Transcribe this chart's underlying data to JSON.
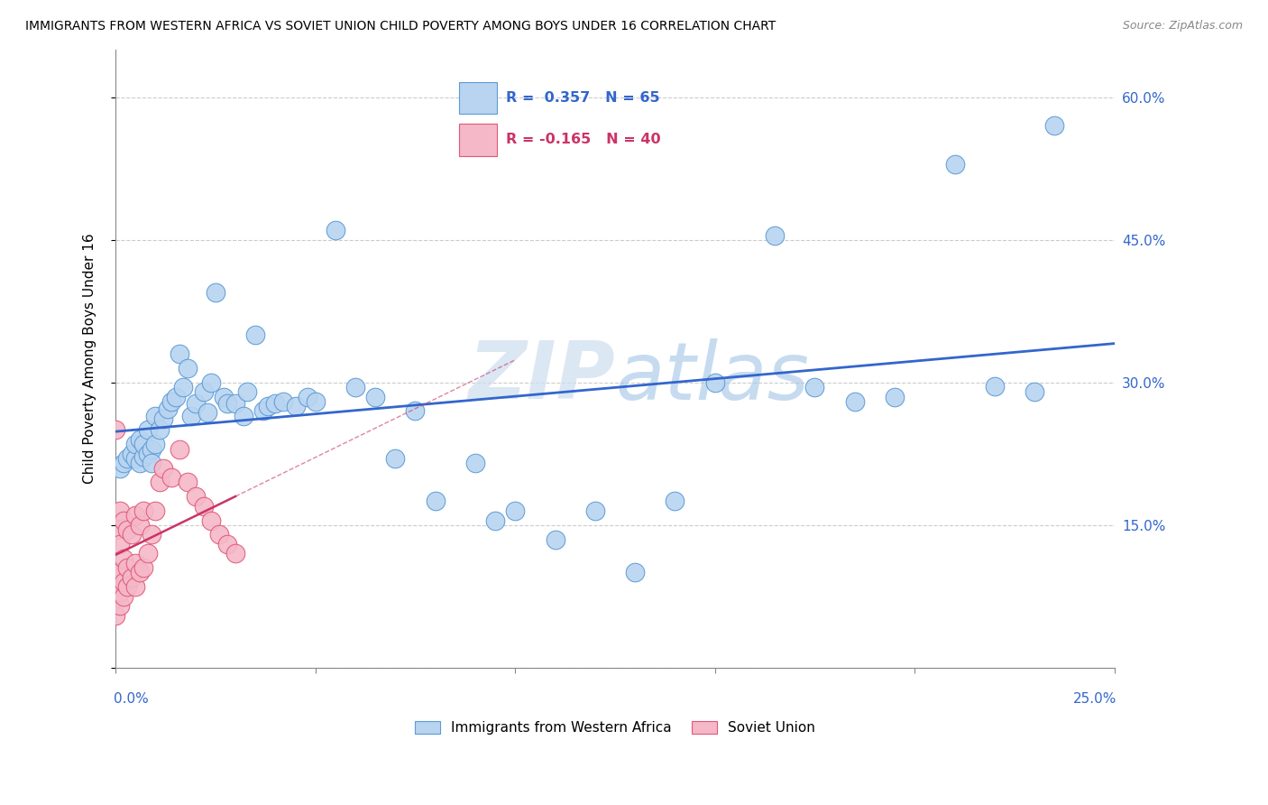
{
  "title": "IMMIGRANTS FROM WESTERN AFRICA VS SOVIET UNION CHILD POVERTY AMONG BOYS UNDER 16 CORRELATION CHART",
  "source": "Source: ZipAtlas.com",
  "ylabel": "Child Poverty Among Boys Under 16",
  "xlim": [
    0.0,
    0.25
  ],
  "ylim": [
    0.0,
    0.65
  ],
  "ytick_values": [
    0.0,
    0.15,
    0.3,
    0.45,
    0.6
  ],
  "xtick_values": [
    0.0,
    0.05,
    0.1,
    0.15,
    0.2,
    0.25
  ],
  "color_blue_fill": "#b8d4f0",
  "color_blue_edge": "#5b9bd5",
  "color_pink_fill": "#f5b8c8",
  "color_pink_edge": "#e05878",
  "color_blue_line": "#3366cc",
  "color_pink_line": "#cc3366",
  "watermark_color": "#d8e8f5",
  "blue_scatter_x": [
    0.001,
    0.002,
    0.003,
    0.004,
    0.005,
    0.005,
    0.006,
    0.006,
    0.007,
    0.007,
    0.008,
    0.008,
    0.009,
    0.009,
    0.01,
    0.01,
    0.011,
    0.012,
    0.013,
    0.014,
    0.015,
    0.016,
    0.017,
    0.018,
    0.019,
    0.02,
    0.022,
    0.023,
    0.024,
    0.025,
    0.027,
    0.028,
    0.03,
    0.032,
    0.033,
    0.035,
    0.037,
    0.038,
    0.04,
    0.042,
    0.045,
    0.048,
    0.05,
    0.055,
    0.06,
    0.065,
    0.07,
    0.075,
    0.08,
    0.09,
    0.095,
    0.1,
    0.11,
    0.12,
    0.13,
    0.14,
    0.15,
    0.165,
    0.175,
    0.185,
    0.195,
    0.21,
    0.22,
    0.23,
    0.235
  ],
  "blue_scatter_y": [
    0.21,
    0.215,
    0.22,
    0.225,
    0.22,
    0.235,
    0.215,
    0.24,
    0.222,
    0.235,
    0.25,
    0.225,
    0.23,
    0.215,
    0.265,
    0.235,
    0.25,
    0.262,
    0.272,
    0.28,
    0.285,
    0.33,
    0.295,
    0.315,
    0.265,
    0.278,
    0.29,
    0.268,
    0.3,
    0.395,
    0.285,
    0.278,
    0.278,
    0.265,
    0.29,
    0.35,
    0.27,
    0.275,
    0.278,
    0.28,
    0.275,
    0.285,
    0.28,
    0.46,
    0.295,
    0.285,
    0.22,
    0.27,
    0.175,
    0.215,
    0.155,
    0.165,
    0.135,
    0.165,
    0.1,
    0.175,
    0.3,
    0.455,
    0.295,
    0.28,
    0.285,
    0.53,
    0.296,
    0.29,
    0.57
  ],
  "pink_scatter_x": [
    0.0,
    0.0,
    0.0,
    0.0,
    0.0,
    0.001,
    0.001,
    0.001,
    0.001,
    0.001,
    0.002,
    0.002,
    0.002,
    0.002,
    0.003,
    0.003,
    0.003,
    0.004,
    0.004,
    0.005,
    0.005,
    0.005,
    0.006,
    0.006,
    0.007,
    0.007,
    0.008,
    0.009,
    0.01,
    0.011,
    0.012,
    0.014,
    0.016,
    0.018,
    0.02,
    0.022,
    0.024,
    0.026,
    0.028,
    0.03
  ],
  "pink_scatter_y": [
    0.055,
    0.08,
    0.1,
    0.145,
    0.25,
    0.065,
    0.08,
    0.1,
    0.13,
    0.165,
    0.075,
    0.09,
    0.115,
    0.155,
    0.085,
    0.105,
    0.145,
    0.095,
    0.14,
    0.085,
    0.11,
    0.16,
    0.1,
    0.15,
    0.105,
    0.165,
    0.12,
    0.14,
    0.165,
    0.195,
    0.21,
    0.2,
    0.23,
    0.195,
    0.18,
    0.17,
    0.155,
    0.14,
    0.13,
    0.12
  ]
}
